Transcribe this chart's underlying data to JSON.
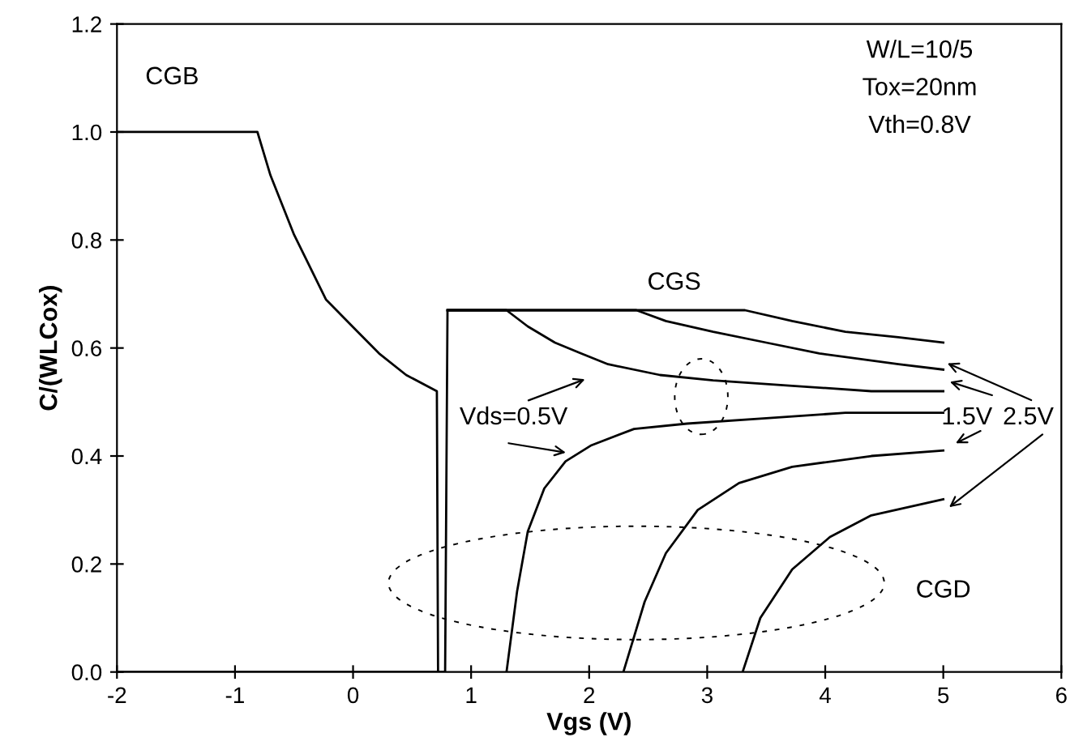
{
  "chart_data": {
    "type": "line",
    "xlabel": "Vgs (V)",
    "ylabel": "C/(WLCox)",
    "xlim": [
      -2,
      6
    ],
    "ylim": [
      0,
      1.2
    ],
    "xticks": [
      -2,
      -1,
      0,
      1,
      2,
      3,
      4,
      5,
      6
    ],
    "yticks": [
      {
        "value": 0,
        "label": "0.0"
      },
      {
        "value": 0.2,
        "label": "0.2"
      },
      {
        "value": 0.4,
        "label": "0.4"
      },
      {
        "value": 0.6,
        "label": "0.6"
      },
      {
        "value": 0.8,
        "label": "0.8"
      },
      {
        "value": 1,
        "label": "1.0"
      },
      {
        "value": 1.2,
        "label": "1.2"
      }
    ],
    "grid": false,
    "legend": false,
    "marker": "none",
    "line_style": "solid",
    "series": [
      {
        "color": "#000000",
        "x": [
          -2,
          -0.81,
          -0.7,
          -0.5,
          -0.23,
          0.04,
          0.22,
          0.45,
          0.71,
          0.72
        ],
        "values": [
          1,
          1,
          0.92,
          0.81,
          0.69,
          0.63,
          0.59,
          0.55,
          0.52,
          0
        ]
      },
      {
        "color": "#000000",
        "x": [
          -2,
          0.78,
          0.8,
          3.32,
          3.72,
          4.17,
          4.62,
          5.0
        ],
        "values": [
          0,
          0,
          0.67,
          0.67,
          0.65,
          0.63,
          0.62,
          0.61
        ]
      },
      {
        "color": "#000000",
        "x": [
          0.8,
          2.4,
          2.65,
          3.05,
          3.5,
          3.95,
          4.62,
          5.0
        ],
        "values": [
          0.67,
          0.67,
          0.65,
          0.63,
          0.61,
          0.59,
          0.57,
          0.56
        ]
      },
      {
        "color": "#000000",
        "x": [
          0.8,
          1.3,
          1.48,
          1.71,
          1.93,
          2.16,
          2.6,
          3.05,
          3.72,
          4.39,
          5.0
        ],
        "values": [
          0.67,
          0.67,
          0.64,
          0.61,
          0.59,
          0.57,
          0.55,
          0.54,
          0.53,
          0.52,
          0.52
        ]
      },
      {
        "color": "#000000",
        "x": [
          1.3,
          1.39,
          1.48,
          1.62,
          1.8,
          2.02,
          2.38,
          2.83,
          3.5,
          4.17,
          5.0
        ],
        "values": [
          0,
          0.15,
          0.26,
          0.34,
          0.39,
          0.42,
          0.45,
          0.46,
          0.47,
          0.48,
          0.48
        ]
      },
      {
        "color": "#000000",
        "x": [
          2.29,
          2.47,
          2.65,
          2.92,
          3.27,
          3.72,
          4.39,
          5.0
        ],
        "values": [
          0,
          0.13,
          0.22,
          0.3,
          0.35,
          0.38,
          0.4,
          0.41
        ]
      },
      {
        "color": "#000000",
        "x": [
          3.3,
          3.45,
          3.72,
          4.04,
          4.39,
          5.0
        ],
        "values": [
          0,
          0.1,
          0.19,
          0.25,
          0.29,
          0.32
        ]
      }
    ],
    "annotations": [
      "CGB",
      "W/L=10/5",
      "Tox=20nm",
      "Vth=0.8V",
      "CGS",
      "CGD",
      "Vds=0.5V",
      "1.5V",
      "2.5V"
    ]
  }
}
